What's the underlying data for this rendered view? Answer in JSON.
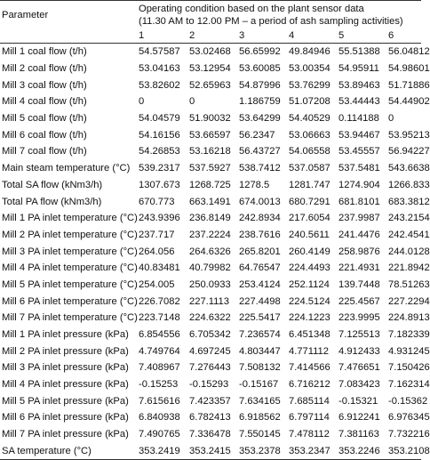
{
  "table": {
    "param_header": "Parameter",
    "condition_header_line1": "Operating condition based on the plant sensor data",
    "condition_header_line2": "(11.30 AM to 12.00 PM – a period of ash sampling activities)",
    "columns": [
      "1",
      "2",
      "3",
      "4",
      "5",
      "6"
    ],
    "rows": [
      {
        "label": "Mill 1 coal flow (t/h)",
        "values": [
          "54.57587",
          "53.02468",
          "56.65992",
          "49.84946",
          "55.51388",
          "56.04812"
        ]
      },
      {
        "label": "Mill 2 coal flow (t/h)",
        "values": [
          "53.04163",
          "53.12954",
          "53.60085",
          "53.00354",
          "54.95911",
          "54.98601"
        ]
      },
      {
        "label": "Mill 3 coal flow (t/h)",
        "values": [
          "53.82602",
          "52.65963",
          "54.87996",
          "53.76299",
          "53.89463",
          "51.71886"
        ]
      },
      {
        "label": "Mill 4 coal flow (t/h)",
        "values": [
          "0",
          "0",
          "1.186759",
          "51.07208",
          "53.44443",
          "54.44902"
        ]
      },
      {
        "label": "Mill 5 coal flow (t/h)",
        "values": [
          "54.04579",
          "51.90032",
          "53.64299",
          "54.40529",
          "0.114188",
          "0"
        ]
      },
      {
        "label": "Mill 6 coal flow (t/h)",
        "values": [
          "54.16156",
          "53.66597",
          "56.2347",
          "53.06663",
          "53.94467",
          "53.95213"
        ]
      },
      {
        "label": "Mill 7 coal flow (t/h)",
        "values": [
          "54.26853",
          "53.16218",
          "56.43727",
          "54.06558",
          "53.45557",
          "56.94227"
        ]
      },
      {
        "label": "Main steam temperature (°C)",
        "values": [
          "539.2317",
          "537.5927",
          "538.7412",
          "537.0587",
          "537.5481",
          "543.6638"
        ]
      },
      {
        "label": "Total SA flow (kNm3/h)",
        "values": [
          "1307.673",
          "1268.725",
          "1278.5",
          "1281.747",
          "1274.904",
          "1266.833"
        ]
      },
      {
        "label": "Total PA flow (kNm3/h)",
        "values": [
          "670.773",
          "663.1491",
          "674.0013",
          "680.7291",
          "681.8101",
          "683.3812"
        ]
      },
      {
        "label": "Mill 1 PA inlet temperature (°C)",
        "values": [
          "243.9396",
          "236.8149",
          "242.8934",
          "217.6054",
          "237.9987",
          "243.2154"
        ]
      },
      {
        "label": "Mill 2 PA inlet temperature (°C)",
        "values": [
          "237.717",
          "237.2224",
          "238.7616",
          "240.5611",
          "241.4476",
          "242.4541"
        ]
      },
      {
        "label": "Mill 3 PA inlet temperature (°C)",
        "values": [
          "264.056",
          "264.6326",
          "265.8201",
          "260.4149",
          "258.9876",
          "244.0128"
        ]
      },
      {
        "label": "Mill 4 PA inlet temperature (°C)",
        "values": [
          "40.83481",
          "40.79982",
          "64.76547",
          "224.4493",
          "221.4931",
          "221.8942"
        ]
      },
      {
        "label": "Mill 5 PA inlet temperature (°C)",
        "values": [
          "254.005",
          "250.0933",
          "253.4124",
          "252.1124",
          "139.7448",
          "78.51263"
        ]
      },
      {
        "label": "Mill 6 PA inlet temperature (°C)",
        "values": [
          "226.7082",
          "227.1113",
          "227.4498",
          "224.5124",
          "225.4567",
          "227.2294"
        ]
      },
      {
        "label": "Mill 7 PA inlet temperature (°C)",
        "values": [
          "223.7148",
          "224.6322",
          "225.5417",
          "224.1223",
          "223.9995",
          "224.8913"
        ]
      },
      {
        "label": "Mill 1 PA inlet pressure (kPa)",
        "values": [
          "6.854556",
          "6.705342",
          "7.236574",
          "6.451348",
          "7.125513",
          "7.182339"
        ]
      },
      {
        "label": "Mill 2 PA inlet pressure (kPa)",
        "values": [
          "4.749764",
          "4.697245",
          "4.803447",
          "4.771112",
          "4.912433",
          "4.931245"
        ]
      },
      {
        "label": "Mill 3 PA inlet pressure (kPa)",
        "values": [
          "7.408967",
          "7.276443",
          "7.508132",
          "7.414566",
          "7.476651",
          "7.150426"
        ]
      },
      {
        "label": "Mill 4 PA inlet pressure (kPa)",
        "values": [
          "-0.15253",
          "-0.15293",
          "-0.15167",
          "6.716212",
          "7.083423",
          "7.162314"
        ]
      },
      {
        "label": "Mill 5 PA inlet pressure (kPa)",
        "values": [
          "7.615616",
          "7.423357",
          "7.634165",
          "7.685114",
          "-0.15321",
          "-0.15362"
        ]
      },
      {
        "label": "Mill 6 PA inlet pressure (kPa)",
        "values": [
          "6.840938",
          "6.782413",
          "6.918562",
          "6.797114",
          "6.912241",
          "6.976345"
        ]
      },
      {
        "label": "Mill 7 PA inlet pressure (kPa)",
        "values": [
          "7.490765",
          "7.336478",
          "7.550145",
          "7.478112",
          "7.381163",
          "7.732216"
        ]
      },
      {
        "label": "SA temperature (°C)",
        "values": [
          "353.2419",
          "353.2415",
          "353.2378",
          "353.2347",
          "353.2246",
          "353.2108"
        ]
      }
    ]
  }
}
